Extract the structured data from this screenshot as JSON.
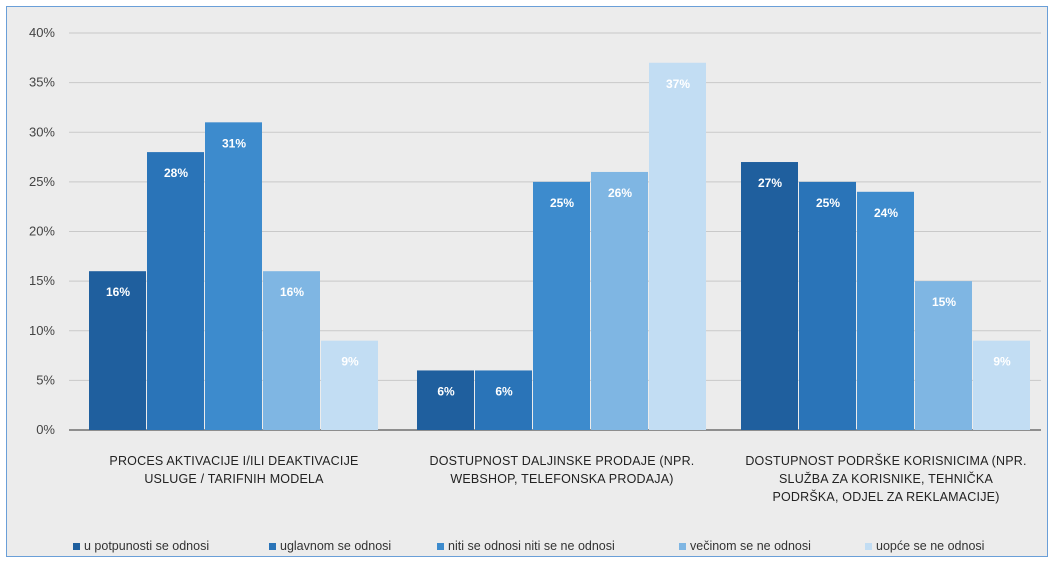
{
  "chart_data": {
    "type": "bar",
    "categories": [
      [
        "PROCES AKTIVACIJE I/ILI DEAKTIVACIJE",
        "USLUGE / TARIFNIH MODELA"
      ],
      [
        "DOSTUPNOST DALJINSKE PRODAJE (NPR.",
        "WEBSHOP, TELEFONSKA PRODAJA)"
      ],
      [
        "DOSTUPNOST PODRŠKE KORISNICIMA (NPR.",
        "SLUŽBA ZA KORISNIKE, TEHNIČKA",
        "PODRŠKA, ODJEL ZA REKLAMACIJE)"
      ]
    ],
    "series": [
      {
        "name": "u potpunosti  se odnosi",
        "values": [
          16,
          6,
          27
        ],
        "color": "#1f5f9e"
      },
      {
        "name": "uglavnom se odnosi",
        "values": [
          28,
          6,
          25
        ],
        "color": "#2a74b8"
      },
      {
        "name": "niti se odnosi niti se ne odnosi",
        "values": [
          31,
          25,
          24
        ],
        "color": "#3d8bcd"
      },
      {
        "name": "večinom se ne odnosi",
        "values": [
          16,
          26,
          15
        ],
        "color": "#7fb6e3"
      },
      {
        "name": "uopće se ne odnosi",
        "values": [
          9,
          37,
          9
        ],
        "color": "#c2ddf3"
      }
    ],
    "data_labels": [
      [
        "16%",
        "6%",
        "27%"
      ],
      [
        "28%",
        "6%",
        "25%"
      ],
      [
        "31%",
        "25%",
        "24%"
      ],
      [
        "16%",
        "26%",
        "15%"
      ],
      [
        "9%",
        "37%",
        "9%"
      ]
    ],
    "y_ticks": [
      "0%",
      "5%",
      "10%",
      "15%",
      "20%",
      "25%",
      "30%",
      "35%",
      "40%"
    ],
    "ylim": [
      0,
      40
    ],
    "y_unit": "%",
    "grid": true,
    "legend_position": "bottom"
  }
}
